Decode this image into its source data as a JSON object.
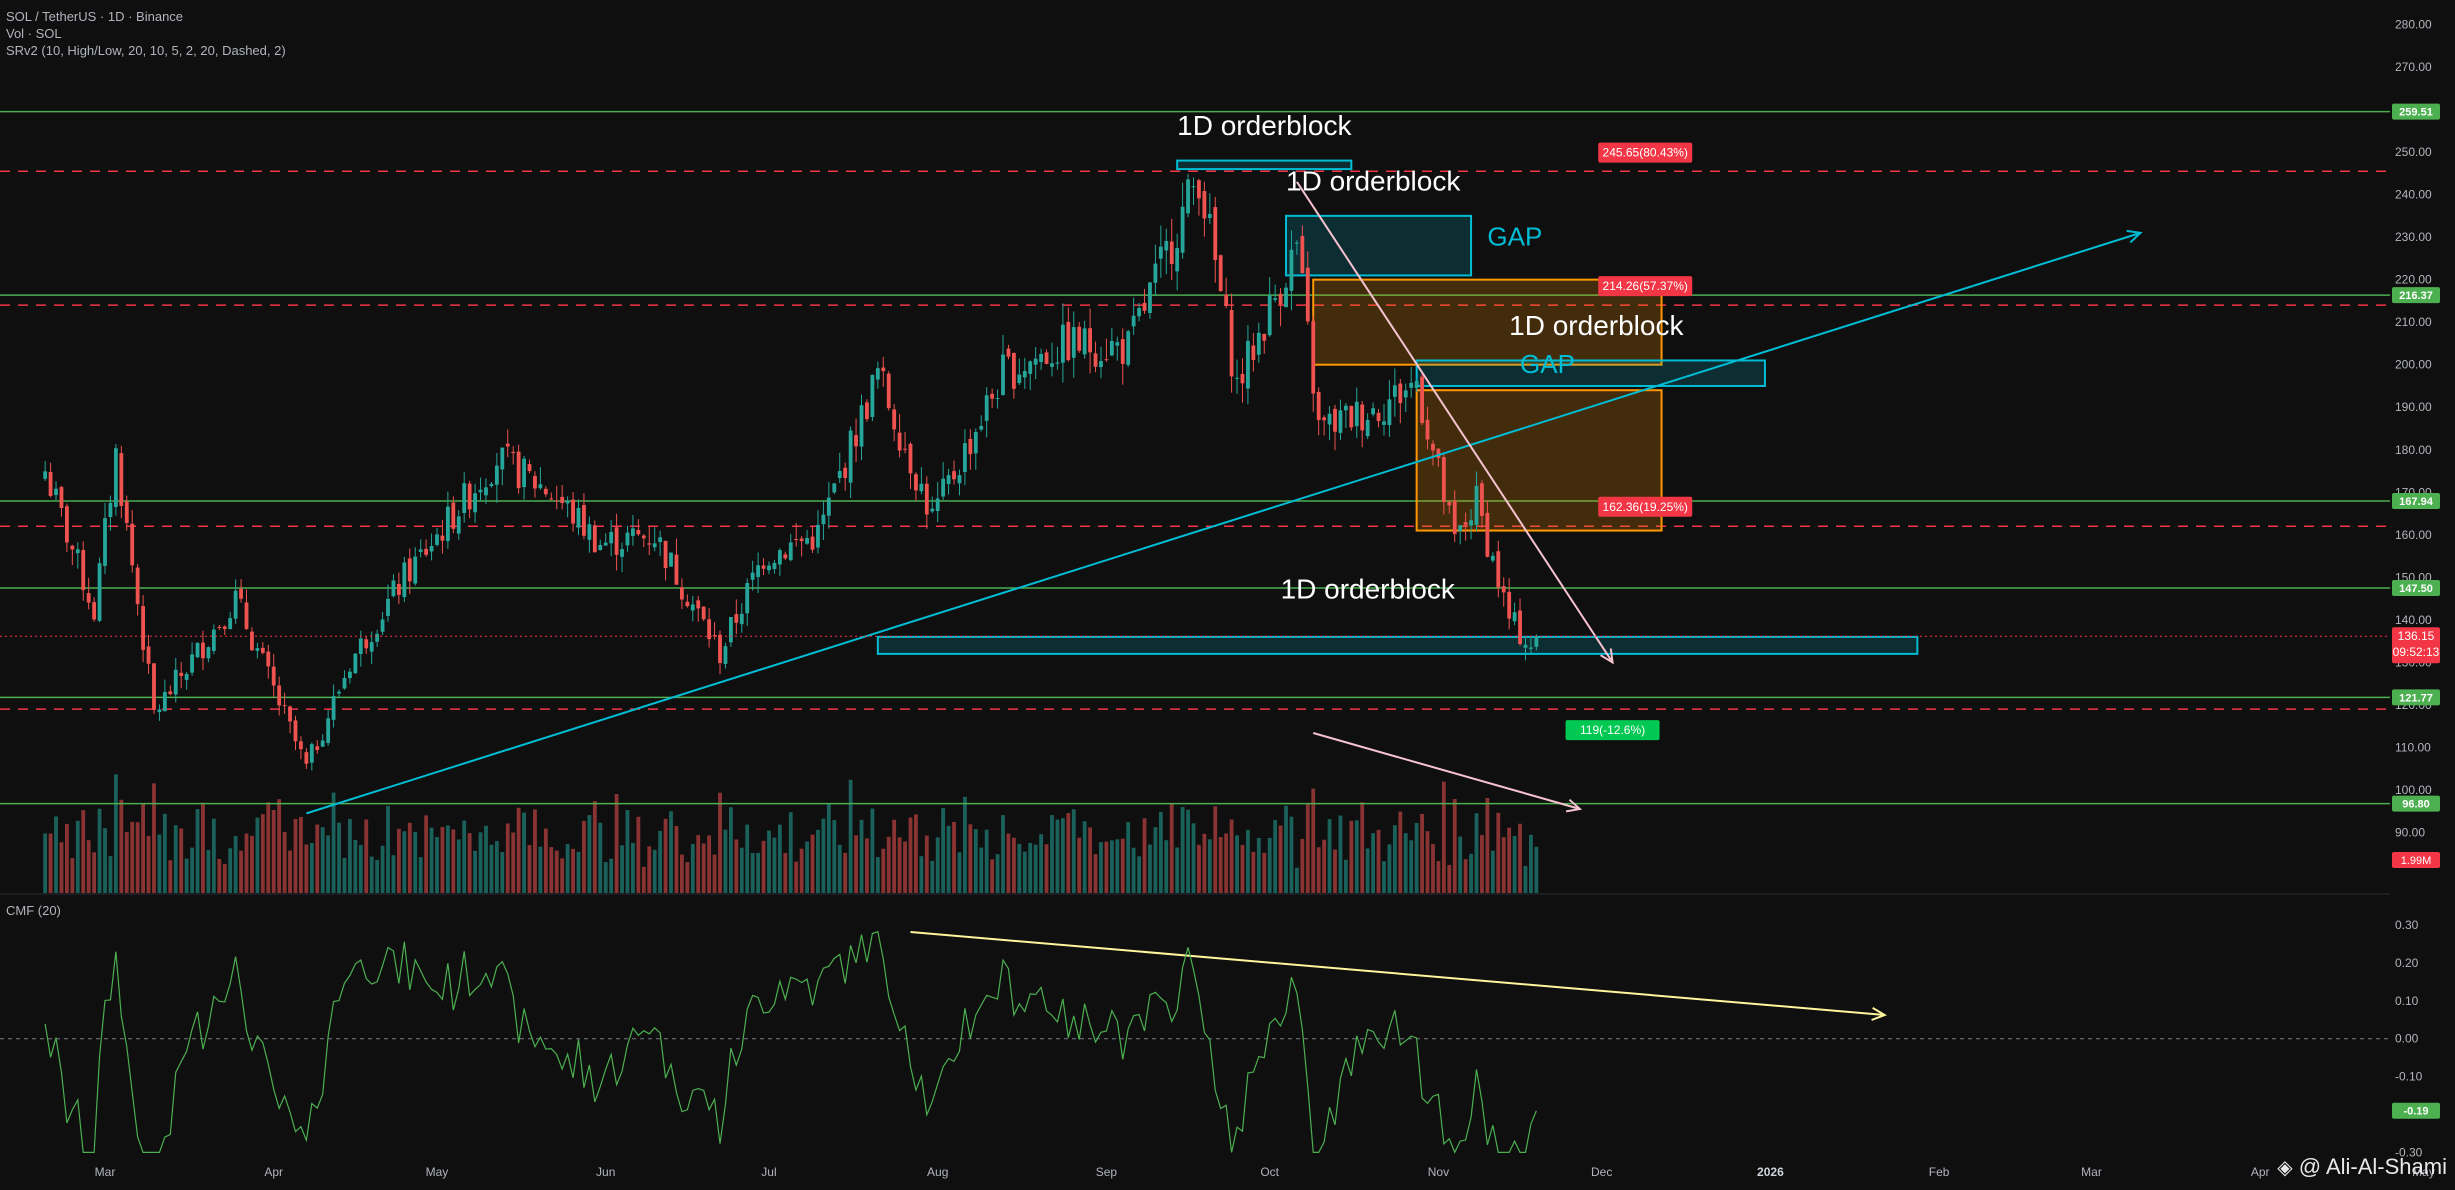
{
  "header": {
    "symbol_line": "SOL / TetherUS · 1D · Binance",
    "vol_line": "Vol · SOL",
    "indicator_line": "SRv2 (10, High/Low, 20, 10, 5, 2, 20, Dashed, 2)",
    "cmf_label": "CMF (20)"
  },
  "watermark": "@ Ali-Al-Shami",
  "colors": {
    "up": "#26a69a",
    "down": "#ef5350",
    "support": "#4caf50",
    "resistance_dash": "#f23645",
    "orderblock": "#00bcd4",
    "gap_box": "#ff9800",
    "trend_white": "#f5c2d0",
    "cmf": "#4caf50"
  },
  "chart_data": [
    {
      "type": "candlestick",
      "title": "SOL / TetherUS · 1D · Binance",
      "x_tick_labels": [
        "Mar",
        "Apr",
        "May",
        "Jun",
        "Jul",
        "Aug",
        "Sep",
        "Oct",
        "Nov",
        "Dec",
        "2026",
        "Feb",
        "Mar",
        "Apr",
        "May"
      ],
      "ylim": [
        85,
        285
      ],
      "y_ticks": [
        90,
        100,
        110,
        120,
        130,
        140,
        150,
        160,
        170,
        180,
        190,
        200,
        210,
        220,
        230,
        240,
        250,
        260,
        270,
        280
      ],
      "price_anchors": [
        [
          "2025-02-18",
          175
        ],
        [
          "2025-02-27",
          142
        ],
        [
          "2025-03-03",
          179
        ],
        [
          "2025-03-10",
          118
        ],
        [
          "2025-03-25",
          145
        ],
        [
          "2025-04-07",
          105
        ],
        [
          "2025-04-15",
          130
        ],
        [
          "2025-04-25",
          150
        ],
        [
          "2025-05-12",
          178
        ],
        [
          "2025-05-22",
          170
        ],
        [
          "2025-05-31",
          158
        ],
        [
          "2025-06-10",
          160
        ],
        [
          "2025-06-22",
          132
        ],
        [
          "2025-06-30",
          155
        ],
        [
          "2025-07-10",
          160
        ],
        [
          "2025-07-21",
          198
        ],
        [
          "2025-07-31",
          164
        ],
        [
          "2025-08-13",
          198
        ],
        [
          "2025-08-25",
          205
        ],
        [
          "2025-09-05",
          204
        ],
        [
          "2025-09-18",
          245
        ],
        [
          "2025-09-25",
          195
        ],
        [
          "2025-10-06",
          228
        ],
        [
          "2025-10-10",
          185
        ],
        [
          "2025-10-21",
          190
        ],
        [
          "2025-10-28",
          196
        ],
        [
          "2025-11-04",
          158
        ],
        [
          "2025-11-08",
          168
        ],
        [
          "2025-11-14",
          140
        ],
        [
          "2025-11-18",
          134
        ],
        [
          "2025-11-19",
          136.15
        ]
      ],
      "last_price": "136.15",
      "countdown": "09:52:13",
      "horizontal_levels": [
        {
          "value": 259.51,
          "label": "259.51",
          "style": "solid"
        },
        {
          "value": 216.37,
          "label": "216.37",
          "style": "solid"
        },
        {
          "value": 167.94,
          "label": "167.94",
          "style": "solid"
        },
        {
          "value": 147.5,
          "label": "147.50",
          "style": "solid"
        },
        {
          "value": 121.77,
          "label": "121.77",
          "style": "solid"
        },
        {
          "value": 96.8,
          "label": "96.80",
          "style": "solid"
        },
        {
          "value": 245.5,
          "style": "dashed"
        },
        {
          "value": 214.0,
          "style": "dashed"
        },
        {
          "value": 162.0,
          "style": "dashed"
        },
        {
          "value": 119.0,
          "style": "dashed"
        }
      ],
      "target_labels": [
        {
          "value": 245.65,
          "label": "245.65(80.43%)",
          "date": "2025-12-09"
        },
        {
          "value": 214.26,
          "label": "214.26(57.37%)",
          "date": "2025-12-09"
        },
        {
          "value": 162.36,
          "label": "162.36(19.25%)",
          "date": "2025-12-09"
        },
        {
          "value": 119,
          "label": "119(-12.6%)",
          "date": "2025-12-03"
        }
      ],
      "orderblocks": [
        {
          "label": "1D orderblock",
          "from": "2025-09-14",
          "to": "2025-10-16",
          "low": 246,
          "high": 248
        },
        {
          "label": "1D orderblock",
          "from": "2025-10-04",
          "to": "2025-11-07",
          "low": 221,
          "high": 235
        },
        {
          "label": "1D orderblock",
          "from": "2025-10-28",
          "to": "2025-12-31",
          "low": 195,
          "high": 201
        },
        {
          "label": "1D orderblock",
          "from": "2025-07-21",
          "to": "2026-01-28",
          "low": 132,
          "high": 136
        }
      ],
      "gap_labels": [
        {
          "label": "GAP",
          "date": "2025-11-10",
          "value": 228
        },
        {
          "label": "GAP",
          "date": "2025-11-16",
          "value": 198
        }
      ],
      "gap_boxes": [
        {
          "from": "2025-10-09",
          "to": "2025-12-12",
          "low": 200,
          "high": 220
        },
        {
          "from": "2025-10-28",
          "to": "2025-12-12",
          "low": 161,
          "high": 194
        }
      ]
    },
    {
      "type": "bar",
      "title": "Vol · SOL",
      "last_volume": "1.99M"
    },
    {
      "type": "line",
      "title": "CMF (20)",
      "ylim": [
        -0.32,
        0.34
      ],
      "y_ticks": [
        "0.30",
        "0.20",
        "0.10",
        "0.00",
        "-0.10",
        "-0.20",
        "-0.30"
      ],
      "last_value": "-0.19"
    }
  ]
}
